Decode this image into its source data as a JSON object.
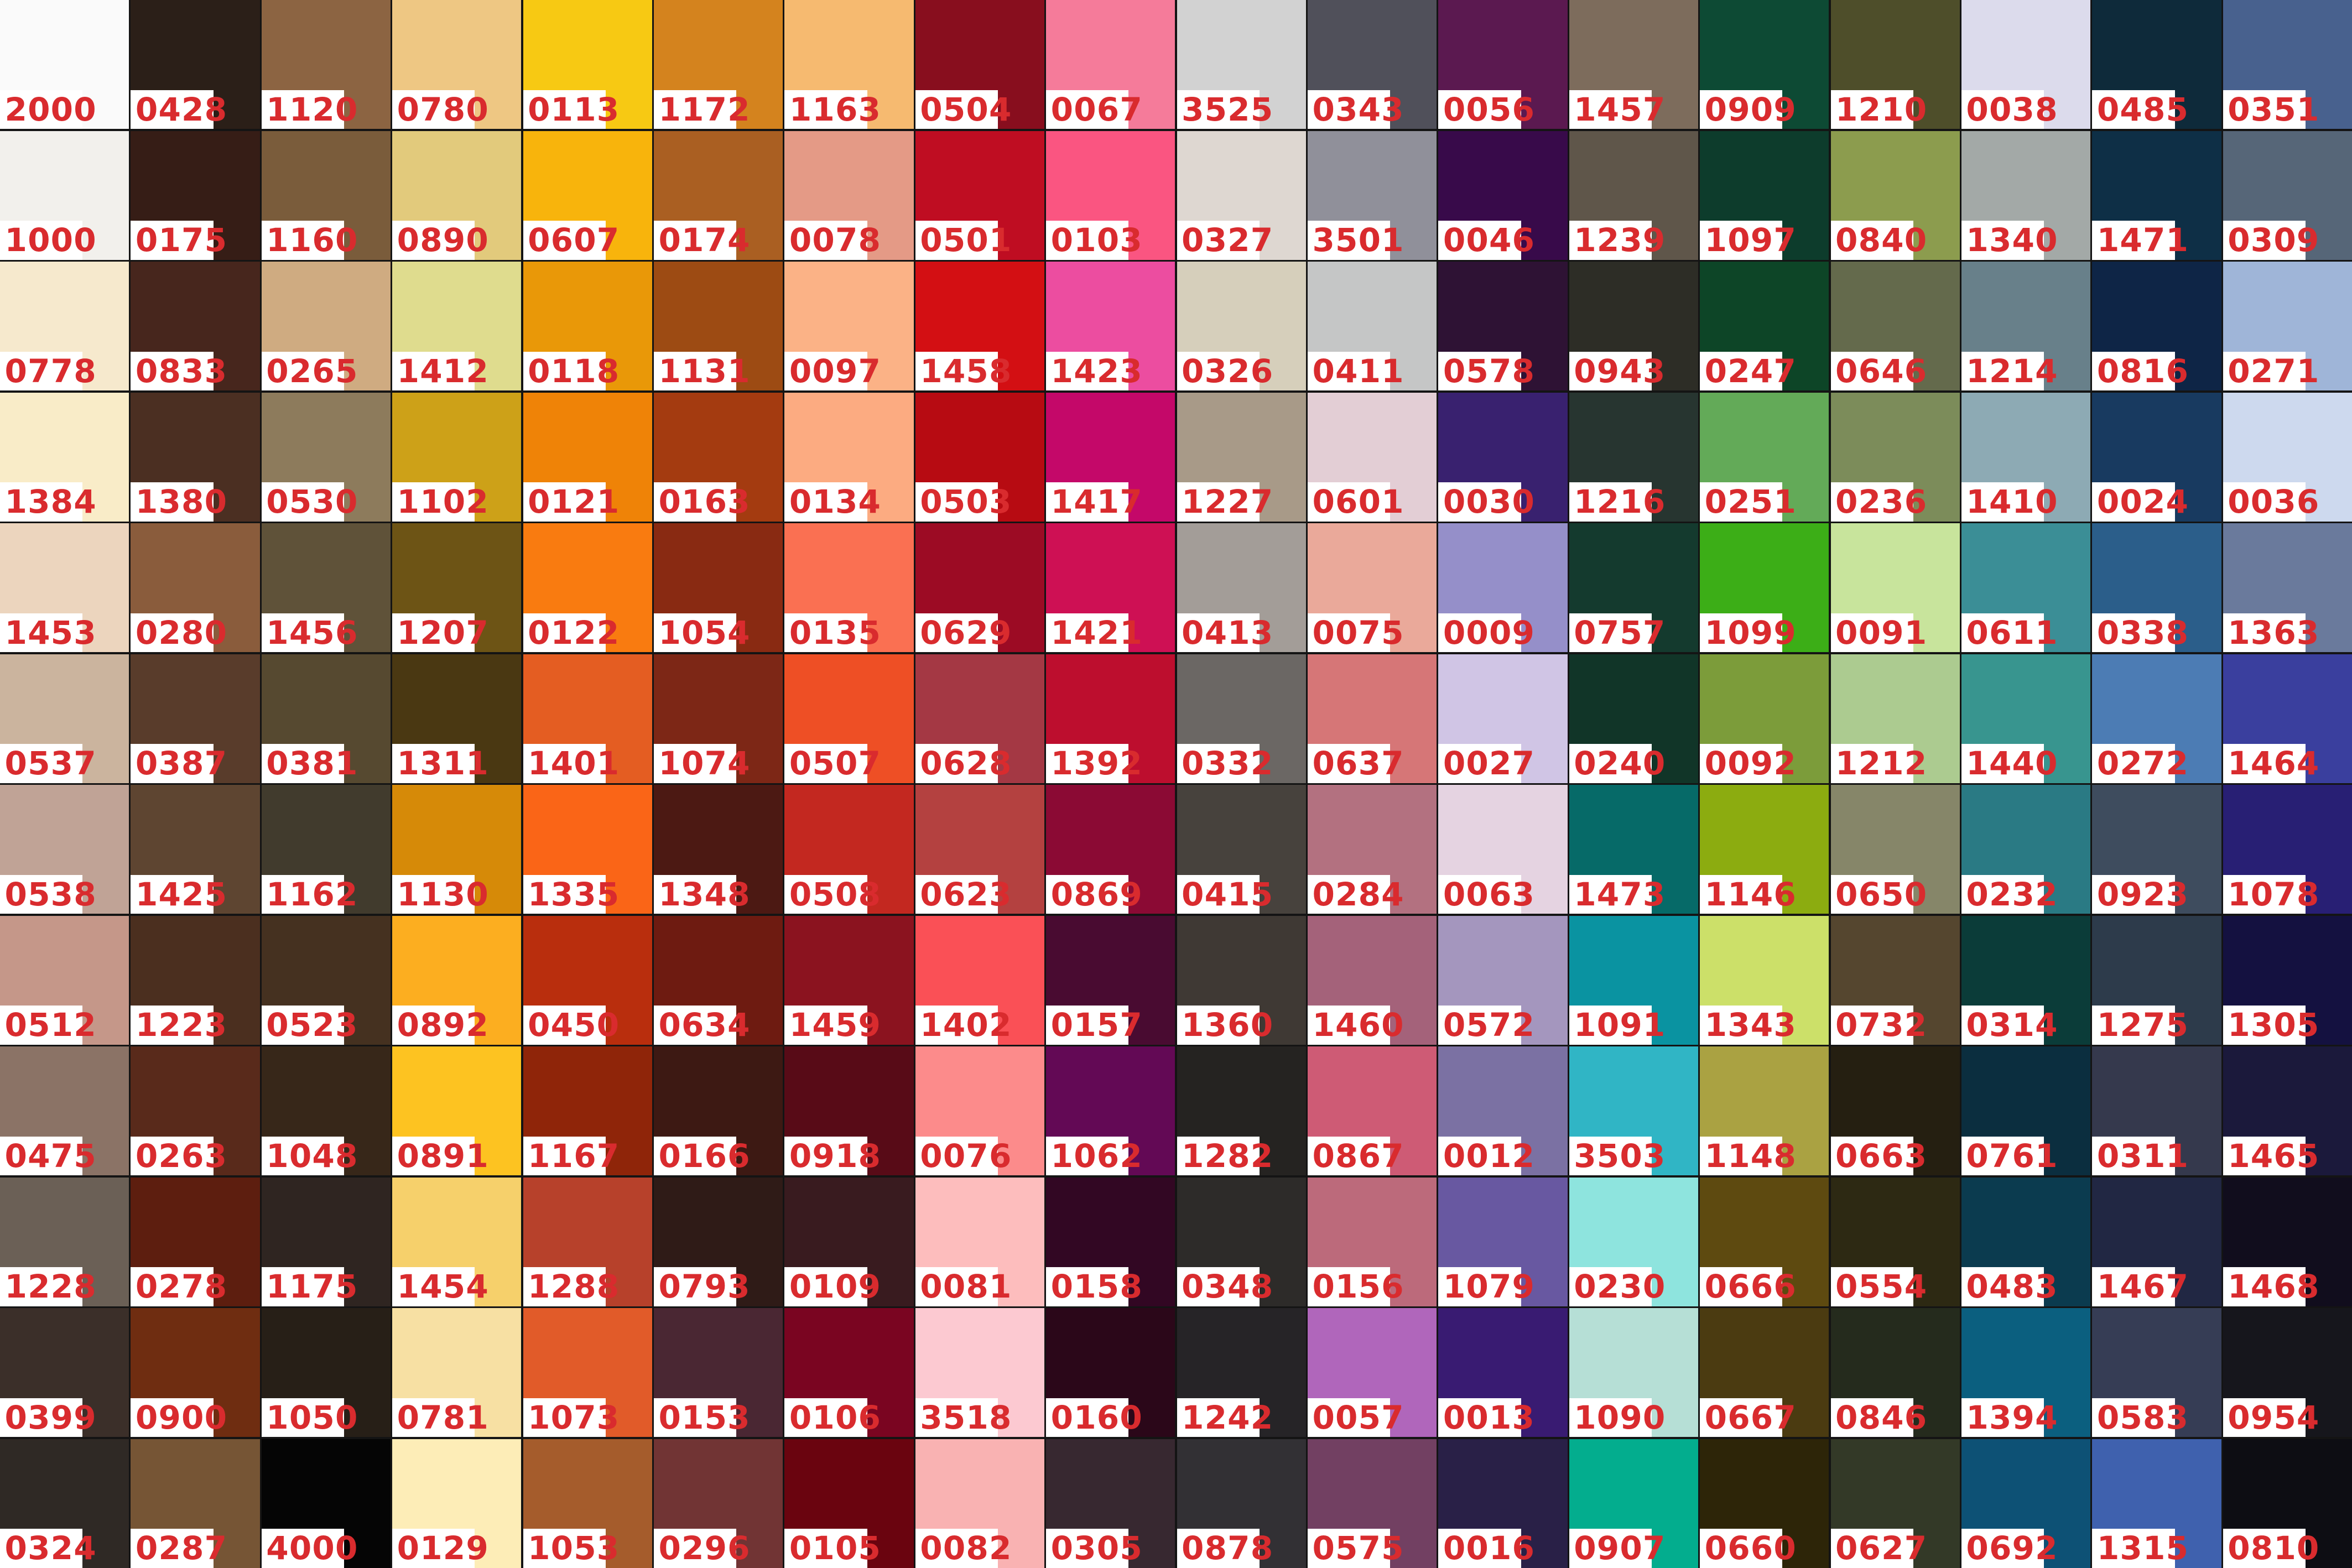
{
  "meta": {
    "label_text_color": "#d92b2e",
    "label_background": "#ffffff",
    "grid_line_color": "#141414",
    "columns": 18,
    "rows": 12
  },
  "chart_data": {
    "type": "table",
    "title": "Color swatch chart with thread color codes",
    "legend_position": "none",
    "grid": "thin dark lines between swatches",
    "cells": [
      [
        {
          "code": "2000",
          "color": "#fafafa"
        },
        {
          "code": "0428",
          "color": "#2b1f18"
        },
        {
          "code": "1120",
          "color": "#8c6442"
        },
        {
          "code": "0780",
          "color": "#eec783"
        },
        {
          "code": "0113",
          "color": "#f7c913"
        },
        {
          "code": "1172",
          "color": "#d4831e"
        },
        {
          "code": "1163",
          "color": "#f6ba70"
        },
        {
          "code": "0504",
          "color": "#880e1e"
        },
        {
          "code": "0067",
          "color": "#f57b9a"
        },
        {
          "code": "3525",
          "color": "#d2d2d2"
        },
        {
          "code": "0343",
          "color": "#50505a"
        },
        {
          "code": "0056",
          "color": "#5b1950"
        },
        {
          "code": "1457",
          "color": "#7d6c5c"
        },
        {
          "code": "0909",
          "color": "#0d4a34"
        },
        {
          "code": "1210",
          "color": "#4e4e2a"
        },
        {
          "code": "0038",
          "color": "#dcdbec"
        },
        {
          "code": "0485",
          "color": "#0e2a3a"
        },
        {
          "code": "0351",
          "color": "#48618e"
        }
      ],
      [
        {
          "code": "1000",
          "color": "#f2f0ec"
        },
        {
          "code": "0175",
          "color": "#361d16"
        },
        {
          "code": "1160",
          "color": "#7a5c3b"
        },
        {
          "code": "0890",
          "color": "#e2ca7c"
        },
        {
          "code": "0607",
          "color": "#f8b40c"
        },
        {
          "code": "0174",
          "color": "#aa5f22"
        },
        {
          "code": "0078",
          "color": "#e49a86"
        },
        {
          "code": "0501",
          "color": "#bf0d22"
        },
        {
          "code": "0103",
          "color": "#fa5581"
        },
        {
          "code": "0327",
          "color": "#ded7d1"
        },
        {
          "code": "3501",
          "color": "#90909a"
        },
        {
          "code": "0046",
          "color": "#380a4a"
        },
        {
          "code": "1239",
          "color": "#5f564a"
        },
        {
          "code": "1097",
          "color": "#0d3c2c"
        },
        {
          "code": "0840",
          "color": "#8c9c4e"
        },
        {
          "code": "1340",
          "color": "#a3a9a7"
        },
        {
          "code": "1471",
          "color": "#0e2f46"
        },
        {
          "code": "0309",
          "color": "#566678"
        }
      ],
      [
        {
          "code": "0778",
          "color": "#f6e9cd"
        },
        {
          "code": "0833",
          "color": "#47261d"
        },
        {
          "code": "0265",
          "color": "#cfab81"
        },
        {
          "code": "1412",
          "color": "#dfdc8e"
        },
        {
          "code": "0118",
          "color": "#e99808"
        },
        {
          "code": "1131",
          "color": "#9d4b13"
        },
        {
          "code": "0097",
          "color": "#fbb286"
        },
        {
          "code": "1458",
          "color": "#d30f13"
        },
        {
          "code": "1423",
          "color": "#ec4da0"
        },
        {
          "code": "0326",
          "color": "#d6cfbb"
        },
        {
          "code": "0411",
          "color": "#c5c6c6"
        },
        {
          "code": "0578",
          "color": "#2e1234"
        },
        {
          "code": "0943",
          "color": "#2d2d26"
        },
        {
          "code": "0247",
          "color": "#0d4527"
        },
        {
          "code": "0646",
          "color": "#646a4c"
        },
        {
          "code": "1214",
          "color": "#68808a"
        },
        {
          "code": "0816",
          "color": "#0e2546"
        },
        {
          "code": "0271",
          "color": "#9fb5d8"
        }
      ],
      [
        {
          "code": "1384",
          "color": "#f9ecc8"
        },
        {
          "code": "1380",
          "color": "#4b2f22"
        },
        {
          "code": "0530",
          "color": "#8d7b5c"
        },
        {
          "code": "1102",
          "color": "#cda118"
        },
        {
          "code": "0121",
          "color": "#ef8307"
        },
        {
          "code": "0163",
          "color": "#a43b10"
        },
        {
          "code": "0134",
          "color": "#fcab81"
        },
        {
          "code": "0503",
          "color": "#b70b12"
        },
        {
          "code": "1417",
          "color": "#c40869"
        },
        {
          "code": "1227",
          "color": "#a89a88"
        },
        {
          "code": "0601",
          "color": "#e3ced5"
        },
        {
          "code": "0030",
          "color": "#39216f"
        },
        {
          "code": "1216",
          "color": "#273530"
        },
        {
          "code": "0251",
          "color": "#63aa58"
        },
        {
          "code": "0236",
          "color": "#7c8c5a"
        },
        {
          "code": "1410",
          "color": "#8daab4"
        },
        {
          "code": "0024",
          "color": "#183a60"
        },
        {
          "code": "0036",
          "color": "#cdd9ee"
        }
      ],
      [
        {
          "code": "1453",
          "color": "#ecd5be"
        },
        {
          "code": "0280",
          "color": "#8a5c3c"
        },
        {
          "code": "1456",
          "color": "#5f5239"
        },
        {
          "code": "1207",
          "color": "#6d5415"
        },
        {
          "code": "0122",
          "color": "#f97b10"
        },
        {
          "code": "1054",
          "color": "#892a12"
        },
        {
          "code": "0135",
          "color": "#fa7052"
        },
        {
          "code": "0629",
          "color": "#9c0b24"
        },
        {
          "code": "1421",
          "color": "#ce1054"
        },
        {
          "code": "0413",
          "color": "#a39d98"
        },
        {
          "code": "0075",
          "color": "#eaa99a"
        },
        {
          "code": "0009",
          "color": "#958fc9"
        },
        {
          "code": "0757",
          "color": "#143a2e"
        },
        {
          "code": "1099",
          "color": "#3cae17"
        },
        {
          "code": "0091",
          "color": "#c8e49c"
        },
        {
          "code": "0611",
          "color": "#3b8e96"
        },
        {
          "code": "0338",
          "color": "#2b5e8a"
        },
        {
          "code": "1363",
          "color": "#6a7a9c"
        }
      ],
      [
        {
          "code": "0537",
          "color": "#cbb49e"
        },
        {
          "code": "0387",
          "color": "#593c2b"
        },
        {
          "code": "0381",
          "color": "#564930"
        },
        {
          "code": "1311",
          "color": "#4a3812"
        },
        {
          "code": "1401",
          "color": "#e45d22"
        },
        {
          "code": "1074",
          "color": "#7d2716"
        },
        {
          "code": "0507",
          "color": "#ee4f25"
        },
        {
          "code": "0628",
          "color": "#a43844"
        },
        {
          "code": "1392",
          "color": "#bd0e2e"
        },
        {
          "code": "0332",
          "color": "#6b6764"
        },
        {
          "code": "0637",
          "color": "#d67677"
        },
        {
          "code": "0027",
          "color": "#d0c5e5"
        },
        {
          "code": "0240",
          "color": "#113528"
        },
        {
          "code": "0092",
          "color": "#7c9c3a"
        },
        {
          "code": "1212",
          "color": "#accb90"
        },
        {
          "code": "1440",
          "color": "#38958f"
        },
        {
          "code": "0272",
          "color": "#4c7cb4"
        },
        {
          "code": "1464",
          "color": "#3a3f9e"
        }
      ],
      [
        {
          "code": "0538",
          "color": "#c0a396"
        },
        {
          "code": "1425",
          "color": "#5e4531"
        },
        {
          "code": "1162",
          "color": "#413b2d"
        },
        {
          "code": "1130",
          "color": "#d68a08"
        },
        {
          "code": "1335",
          "color": "#fa6517"
        },
        {
          "code": "1348",
          "color": "#4c1913"
        },
        {
          "code": "0508",
          "color": "#c32820"
        },
        {
          "code": "0623",
          "color": "#b44140"
        },
        {
          "code": "0869",
          "color": "#8b0a34"
        },
        {
          "code": "0415",
          "color": "#47423d"
        },
        {
          "code": "0284",
          "color": "#b37180"
        },
        {
          "code": "0063",
          "color": "#e5d3e1"
        },
        {
          "code": "1473",
          "color": "#066a68"
        },
        {
          "code": "1146",
          "color": "#8cac10"
        },
        {
          "code": "0650",
          "color": "#868669"
        },
        {
          "code": "0232",
          "color": "#2a7a84"
        },
        {
          "code": "0923",
          "color": "#3e4c5e"
        },
        {
          "code": "1078",
          "color": "#281f74"
        }
      ],
      [
        {
          "code": "0512",
          "color": "#c59789"
        },
        {
          "code": "1223",
          "color": "#4b2f1f"
        },
        {
          "code": "0523",
          "color": "#453120"
        },
        {
          "code": "0892",
          "color": "#fcae20"
        },
        {
          "code": "0450",
          "color": "#b92e0d"
        },
        {
          "code": "0634",
          "color": "#6e1b11"
        },
        {
          "code": "1459",
          "color": "#8b131f"
        },
        {
          "code": "1402",
          "color": "#fa5056"
        },
        {
          "code": "0157",
          "color": "#490b31"
        },
        {
          "code": "1360",
          "color": "#3f3934"
        },
        {
          "code": "1460",
          "color": "#a4627a"
        },
        {
          "code": "0572",
          "color": "#a496be"
        },
        {
          "code": "1091",
          "color": "#0a93a1"
        },
        {
          "code": "1343",
          "color": "#cce069"
        },
        {
          "code": "0732",
          "color": "#55462f"
        },
        {
          "code": "0314",
          "color": "#0b3c39"
        },
        {
          "code": "1275",
          "color": "#2d3b4b"
        },
        {
          "code": "1305",
          "color": "#141140"
        }
      ],
      [
        {
          "code": "0475",
          "color": "#8b7366"
        },
        {
          "code": "0263",
          "color": "#592a1b"
        },
        {
          "code": "1048",
          "color": "#372719"
        },
        {
          "code": "0891",
          "color": "#fdc321"
        },
        {
          "code": "1167",
          "color": "#8f2509"
        },
        {
          "code": "0166",
          "color": "#3d1913"
        },
        {
          "code": "0918",
          "color": "#580b17"
        },
        {
          "code": "0076",
          "color": "#fc8b8b"
        },
        {
          "code": "1062",
          "color": "#630955"
        },
        {
          "code": "1282",
          "color": "#252321"
        },
        {
          "code": "0867",
          "color": "#ce5b75"
        },
        {
          "code": "0012",
          "color": "#7b71a3"
        },
        {
          "code": "3503",
          "color": "#30b5c5"
        },
        {
          "code": "1148",
          "color": "#aaa242"
        },
        {
          "code": "0663",
          "color": "#251f11"
        },
        {
          "code": "0761",
          "color": "#0b2e3f"
        },
        {
          "code": "0311",
          "color": "#35394d"
        },
        {
          "code": "1465",
          "color": "#1b193b"
        }
      ],
      [
        {
          "code": "1228",
          "color": "#6b6056"
        },
        {
          "code": "0278",
          "color": "#5d1e0f"
        },
        {
          "code": "1175",
          "color": "#2f2521"
        },
        {
          "code": "1454",
          "color": "#f6d06b"
        },
        {
          "code": "1288",
          "color": "#b7412b"
        },
        {
          "code": "0793",
          "color": "#2f1b17"
        },
        {
          "code": "0109",
          "color": "#391b1f"
        },
        {
          "code": "0081",
          "color": "#fdbdbd"
        },
        {
          "code": "0158",
          "color": "#320723"
        },
        {
          "code": "0348",
          "color": "#2d2b29"
        },
        {
          "code": "0156",
          "color": "#bc6a7b"
        },
        {
          "code": "1079",
          "color": "#6858a1"
        },
        {
          "code": "0230",
          "color": "#8ee4de"
        },
        {
          "code": "0666",
          "color": "#5e4a10"
        },
        {
          "code": "0554",
          "color": "#2d2913"
        },
        {
          "code": "0483",
          "color": "#0b3b4f"
        },
        {
          "code": "1467",
          "color": "#212743"
        },
        {
          "code": "1468",
          "color": "#110d1d"
        }
      ],
      [
        {
          "code": "0399",
          "color": "#3b2f29"
        },
        {
          "code": "0900",
          "color": "#6f2d11"
        },
        {
          "code": "1050",
          "color": "#271f17"
        },
        {
          "code": "0781",
          "color": "#f7e0a3"
        },
        {
          "code": "1073",
          "color": "#e15b29"
        },
        {
          "code": "0153",
          "color": "#4a2733"
        },
        {
          "code": "0106",
          "color": "#7a0521"
        },
        {
          "code": "3518",
          "color": "#fcc9d1"
        },
        {
          "code": "0160",
          "color": "#2b0719"
        },
        {
          "code": "1242",
          "color": "#262427"
        },
        {
          "code": "0057",
          "color": "#b066bb"
        },
        {
          "code": "0013",
          "color": "#391b72"
        },
        {
          "code": "1090",
          "color": "#b6dfd6"
        },
        {
          "code": "0667",
          "color": "#4b3b11"
        },
        {
          "code": "0846",
          "color": "#252b1d"
        },
        {
          "code": "1394",
          "color": "#0b5f7f"
        },
        {
          "code": "0583",
          "color": "#363d55"
        },
        {
          "code": "0954",
          "color": "#16161c"
        }
      ],
      [
        {
          "code": "0324",
          "color": "#2f2925"
        },
        {
          "code": "0287",
          "color": "#765535"
        },
        {
          "code": "4000",
          "color": "#050505"
        },
        {
          "code": "0129",
          "color": "#fdedb7"
        },
        {
          "code": "1053",
          "color": "#a55c2c"
        },
        {
          "code": "0296",
          "color": "#713434"
        },
        {
          "code": "0105",
          "color": "#6a040f"
        },
        {
          "code": "0082",
          "color": "#f9b2b2"
        },
        {
          "code": "0305",
          "color": "#372830"
        },
        {
          "code": "0878",
          "color": "#323034"
        },
        {
          "code": "0575",
          "color": "#724062"
        },
        {
          "code": "0016",
          "color": "#292047"
        },
        {
          "code": "0907",
          "color": "#03ad8e"
        },
        {
          "code": "0660",
          "color": "#2d2508"
        },
        {
          "code": "0627",
          "color": "#333927"
        },
        {
          "code": "0692",
          "color": "#0d5175"
        },
        {
          "code": "1315",
          "color": "#3f61ae"
        },
        {
          "code": "0810",
          "color": "#0d0d13"
        }
      ]
    ]
  }
}
